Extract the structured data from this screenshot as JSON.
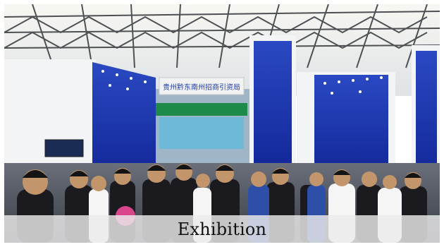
{
  "caption": {
    "text": "Exhibition"
  },
  "scene": {
    "booth_sign_text": "贵州黔东南州招商引资局"
  },
  "colors": {
    "booth_blue": "#1f3fb0",
    "ceiling": "#e9ecef",
    "booth_white": "#f3f4f6",
    "caption_band": "#ebebeb"
  }
}
